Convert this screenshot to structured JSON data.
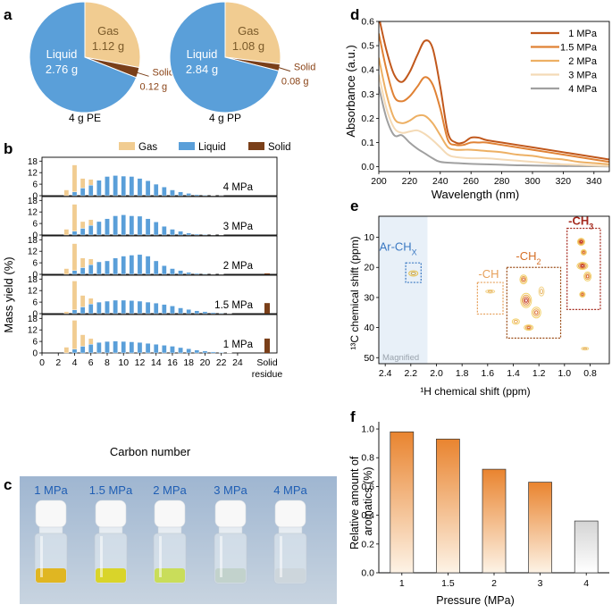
{
  "figure": {
    "panels": {
      "a": "a",
      "b": "b",
      "c": "c",
      "d": "d",
      "e": "e",
      "f": "f"
    }
  },
  "colors": {
    "gas": "#f1cc91",
    "liquid": "#5a9fd9",
    "solid": "#7a3f19",
    "gas_text": "#ffffff",
    "solid_label": "#8a4316",
    "d1": "#c1581c",
    "d15": "#e08235",
    "d2": "#edb064",
    "d3": "#f4dab6",
    "d4": "#a0a0a0",
    "f_top": "#e9842f",
    "f_bottom": "#fdf3e6",
    "f_last_top": "#d4d4d4",
    "nmr_highlight": "#e8f0f8",
    "nmr_blue": "#3a78c2",
    "nmr_orange": "#e6a05a",
    "nmr_brown": "#9c4e1a",
    "nmr_red": "#a52a1e",
    "vials_bg": "#a9bfd8",
    "vials_label": "#1f5eb4"
  },
  "chart_data": [
    {
      "id": "a",
      "type": "pie",
      "pies": [
        {
          "title": "4 g PE",
          "slices": [
            {
              "name": "Liquid",
              "label": "Liquid",
              "value_label": "2.76 g",
              "value": 2.76
            },
            {
              "name": "Gas",
              "label": "Gas",
              "value_label": "1.12 g",
              "value": 1.12
            },
            {
              "name": "Solid",
              "label": "Solid",
              "value_label": "0.12 g",
              "value": 0.12
            }
          ]
        },
        {
          "title": "4 g PP",
          "slices": [
            {
              "name": "Liquid",
              "label": "Liquid",
              "value_label": "2.84 g",
              "value": 2.84
            },
            {
              "name": "Gas",
              "label": "Gas",
              "value_label": "1.08 g",
              "value": 1.08
            },
            {
              "name": "Solid",
              "label": "Solid",
              "value_label": "0.08 g",
              "value": 0.08
            }
          ]
        }
      ]
    },
    {
      "id": "b",
      "type": "bar",
      "stacked": true,
      "xlabel": "Carbon number",
      "ylabel": "Mass yield (%)",
      "legend": [
        "Gas",
        "Liquid",
        "Solid"
      ],
      "xticks": [
        "0",
        "2",
        "4",
        "6",
        "8",
        "10",
        "12",
        "14",
        "16",
        "18",
        "20",
        "22",
        "24"
      ],
      "solid_residue_label": "Solid\nresidue",
      "ylim": [
        0,
        20
      ],
      "yticks": [
        "0",
        "6",
        "12",
        "18"
      ],
      "categories": [
        3,
        4,
        5,
        6,
        7,
        8,
        9,
        10,
        11,
        12,
        13,
        14,
        15,
        16,
        17,
        18,
        19,
        20,
        21,
        22,
        23,
        24
      ],
      "subplots": [
        {
          "label": "4 MPa",
          "liquid": [
            0,
            2,
            4,
            5.5,
            8,
            10,
            10.5,
            10.2,
            10,
            9,
            7.8,
            6,
            4.5,
            3,
            2,
            1.2,
            0.6,
            0.3,
            0.15,
            0.05,
            0,
            0
          ],
          "gas": [
            3,
            14,
            5,
            3,
            0,
            0,
            0,
            0,
            0,
            0,
            0,
            0,
            0,
            0,
            0,
            0,
            0,
            0,
            0,
            0,
            0,
            0
          ],
          "solid": 0
        },
        {
          "label": "3 MPa",
          "liquid": [
            0,
            2,
            3.5,
            5,
            7,
            8.5,
            10,
            10.5,
            10,
            9.8,
            8.5,
            6.8,
            4.5,
            3,
            2,
            1,
            0.5,
            0.3,
            0.2,
            0.1,
            0,
            0
          ],
          "gas": [
            3,
            14,
            3.5,
            3,
            0,
            0,
            0,
            0,
            0,
            0,
            0,
            0,
            0,
            0,
            0,
            0,
            0,
            0,
            0,
            0,
            0,
            0
          ],
          "solid": 0
        },
        {
          "label": "2 MPa",
          "liquid": [
            0,
            2,
            3.5,
            5,
            6.5,
            7,
            8.5,
            9.5,
            10,
            10.3,
            9.5,
            7,
            4.5,
            3,
            2,
            1,
            0.5,
            0.3,
            0.2,
            0.1,
            0,
            0
          ],
          "gas": [
            3,
            14,
            5,
            3,
            0,
            0,
            0,
            0,
            0,
            0,
            0,
            0,
            0,
            0,
            0,
            0,
            0,
            0,
            0,
            0,
            0,
            0
          ],
          "solid": 0.5
        },
        {
          "label": "1.5 MPa",
          "liquid": [
            0,
            2,
            3.5,
            5,
            6,
            6.5,
            7,
            7,
            6.8,
            6.5,
            6,
            5.5,
            4.8,
            4,
            3,
            2.2,
            1.5,
            1,
            0.6,
            0.3,
            0.1,
            0
          ],
          "gas": [
            1,
            15,
            6,
            3,
            0,
            0,
            0,
            0,
            0,
            0,
            0,
            0,
            0,
            0,
            0,
            0,
            0,
            0,
            0,
            0,
            0,
            0
          ],
          "solid": 5.5
        },
        {
          "label": "1 MPa",
          "liquid": [
            0,
            2,
            3.5,
            4.5,
            5.5,
            6,
            6.2,
            6,
            5.8,
            5.5,
            5,
            4.5,
            4,
            3.5,
            2.8,
            2.2,
            1.5,
            1,
            0.6,
            0.3,
            0.1,
            0
          ],
          "gas": [
            3,
            15,
            6,
            3,
            0,
            0,
            0,
            0,
            0,
            0,
            0,
            0,
            0,
            0,
            0,
            0,
            0,
            0,
            0,
            0,
            0,
            0
          ],
          "solid": 7.5
        }
      ]
    },
    {
      "id": "d",
      "type": "line",
      "xlabel": "Wavelength (nm)",
      "ylabel": "Absorbance (a.u.)",
      "xlim": [
        200,
        350
      ],
      "ylim": [
        -0.02,
        0.6
      ],
      "xticks": [
        "200",
        "220",
        "240",
        "260",
        "280",
        "300",
        "320",
        "340"
      ],
      "yticks": [
        "0.0",
        "0.1",
        "0.2",
        "0.3",
        "0.4",
        "0.5",
        "0.6"
      ],
      "series": [
        {
          "name": "1 MPa",
          "x": [
            200,
            205,
            210,
            215,
            220,
            225,
            230,
            235,
            240,
            245,
            250,
            255,
            260,
            265,
            270,
            280,
            290,
            300,
            310,
            320,
            330,
            340,
            350
          ],
          "y": [
            0.62,
            0.48,
            0.38,
            0.35,
            0.39,
            0.46,
            0.52,
            0.49,
            0.33,
            0.14,
            0.1,
            0.1,
            0.12,
            0.12,
            0.11,
            0.1,
            0.09,
            0.08,
            0.07,
            0.06,
            0.05,
            0.04,
            0.03
          ]
        },
        {
          "name": "1.5 MPa",
          "x": [
            200,
            205,
            210,
            215,
            220,
            225,
            230,
            235,
            240,
            245,
            250,
            255,
            260,
            265,
            270,
            280,
            290,
            300,
            310,
            320,
            330,
            340,
            350
          ],
          "y": [
            0.55,
            0.4,
            0.29,
            0.27,
            0.29,
            0.33,
            0.37,
            0.34,
            0.24,
            0.11,
            0.09,
            0.09,
            0.1,
            0.1,
            0.1,
            0.09,
            0.08,
            0.07,
            0.06,
            0.05,
            0.04,
            0.03,
            0.02
          ]
        },
        {
          "name": "2 MPa",
          "x": [
            200,
            205,
            210,
            215,
            220,
            225,
            230,
            235,
            240,
            245,
            250,
            255,
            260,
            270,
            280,
            290,
            300,
            310,
            320,
            330,
            340,
            350
          ],
          "y": [
            0.45,
            0.3,
            0.2,
            0.18,
            0.19,
            0.21,
            0.21,
            0.18,
            0.13,
            0.08,
            0.07,
            0.07,
            0.07,
            0.065,
            0.06,
            0.05,
            0.045,
            0.035,
            0.03,
            0.02,
            0.015,
            0.01
          ]
        },
        {
          "name": "3 MPa",
          "x": [
            200,
            205,
            210,
            215,
            220,
            225,
            230,
            235,
            240,
            245,
            250,
            260,
            270,
            280,
            290,
            300,
            310,
            320,
            330,
            340,
            350
          ],
          "y": [
            0.38,
            0.24,
            0.16,
            0.14,
            0.145,
            0.15,
            0.135,
            0.11,
            0.08,
            0.05,
            0.04,
            0.035,
            0.035,
            0.03,
            0.025,
            0.02,
            0.015,
            0.01,
            0.008,
            0.005,
            0.003
          ]
        },
        {
          "name": "4 MPa",
          "x": [
            200,
            205,
            210,
            215,
            220,
            225,
            230,
            235,
            240,
            250,
            260,
            270,
            280,
            290,
            300,
            320,
            340,
            350
          ],
          "y": [
            0.33,
            0.2,
            0.13,
            0.13,
            0.1,
            0.075,
            0.055,
            0.035,
            0.02,
            0.015,
            0.012,
            0.01,
            0.008,
            0.006,
            0.005,
            0.003,
            0.002,
            0.001
          ]
        }
      ]
    },
    {
      "id": "e",
      "type": "heatmap",
      "xlabel": "¹H chemical shift (ppm)",
      "ylabel": "¹³C chemical shift (ppm)",
      "xlim": [
        2.45,
        0.65
      ],
      "ylim": [
        52,
        3
      ],
      "xticks": [
        "2.4",
        "2.2",
        "2.0",
        "1.8",
        "1.6",
        "1.4",
        "1.2",
        "1.0",
        "0.8"
      ],
      "yticks": [
        "10",
        "20",
        "30",
        "40",
        "50"
      ],
      "annotations": {
        "ar": "Ar-CH",
        "ar_sub": "X",
        "ch": "-CH",
        "ch2": "-CH",
        "ch2_sub": "2",
        "ch3": "-CH",
        "ch3_sub": "3",
        "magnified": "Magnified"
      }
    },
    {
      "id": "f",
      "type": "bar",
      "xlabel": "Pressure (MPa)",
      "ylabel": "Relative amount of\naromatics (%)",
      "categories": [
        "1",
        "1.5",
        "2",
        "3",
        "4"
      ],
      "values": [
        0.98,
        0.93,
        0.72,
        0.63,
        0.36
      ],
      "ylim": [
        0,
        1.05
      ],
      "yticks": [
        "0.0",
        "0.2",
        "0.4",
        "0.6",
        "0.8",
        "1.0"
      ]
    }
  ],
  "vials": {
    "labels": [
      "1 MPa",
      "1.5 MPa",
      "2 MPa",
      "3 MPa",
      "4 MPa"
    ],
    "liquid_colors": [
      "#e0b622",
      "#d9d42a",
      "#c9dd5a",
      "#c2d2cc",
      "#cdd6dc"
    ]
  }
}
